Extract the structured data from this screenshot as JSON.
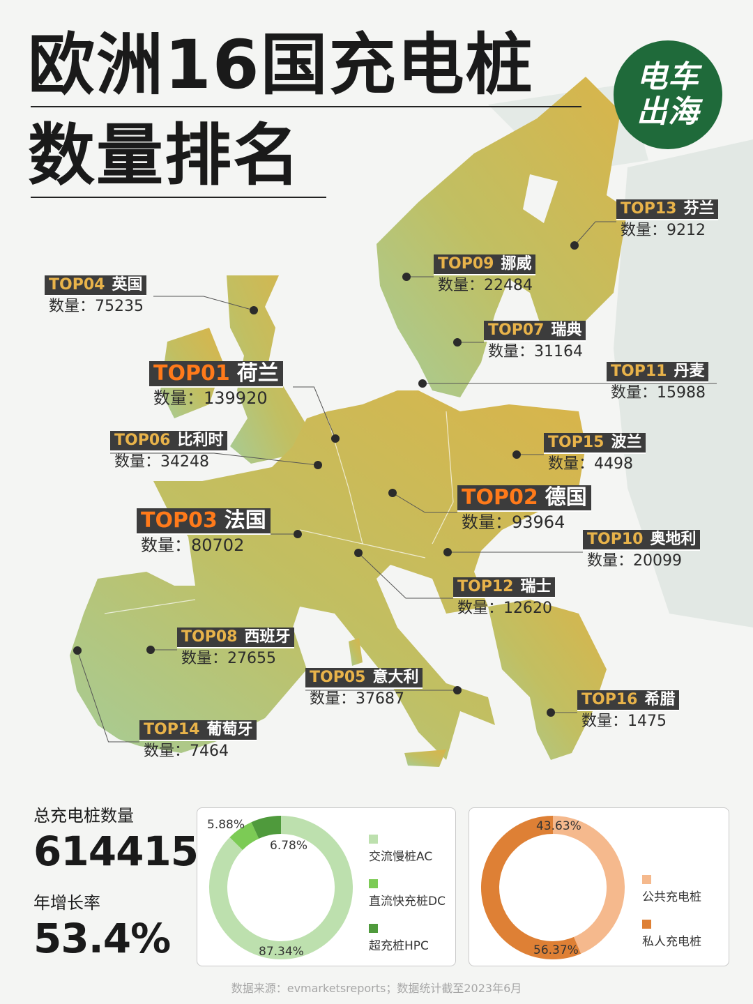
{
  "title": {
    "line1": "欧洲16国充电桩",
    "line2": "数量排名"
  },
  "logo": {
    "line1": "电车",
    "line2": "出海"
  },
  "count_prefix": "数量：",
  "countries": [
    {
      "rank": "TOP01",
      "name": "荷兰",
      "count": "139920",
      "value": 139920
    },
    {
      "rank": "TOP02",
      "name": "德国",
      "count": "93964",
      "value": 93964
    },
    {
      "rank": "TOP03",
      "name": "法国",
      "count": "80702",
      "value": 80702
    },
    {
      "rank": "TOP04",
      "name": "英国",
      "count": "75235",
      "value": 75235
    },
    {
      "rank": "TOP05",
      "name": "意大利",
      "count": "37687",
      "value": 37687
    },
    {
      "rank": "TOP06",
      "name": "比利时",
      "count": "34248",
      "value": 34248
    },
    {
      "rank": "TOP07",
      "name": "瑞典",
      "count": "31164",
      "value": 31164
    },
    {
      "rank": "TOP08",
      "name": "西班牙",
      "count": "27655",
      "value": 27655
    },
    {
      "rank": "TOP09",
      "name": "挪威",
      "count": "22484",
      "value": 22484
    },
    {
      "rank": "TOP10",
      "name": "奥地利",
      "count": "20099",
      "value": 20099
    },
    {
      "rank": "TOP11",
      "name": "丹麦",
      "count": "15988",
      "value": 15988
    },
    {
      "rank": "TOP12",
      "name": "瑞士",
      "count": "12620",
      "value": 12620
    },
    {
      "rank": "TOP13",
      "name": "芬兰",
      "count": "9212",
      "value": 9212
    },
    {
      "rank": "TOP14",
      "name": "葡萄牙",
      "count": "7464",
      "value": 7464
    },
    {
      "rank": "TOP15",
      "name": "波兰",
      "count": "4498",
      "value": 4498
    },
    {
      "rank": "TOP16",
      "name": "希腊",
      "count": "1475",
      "value": 1475
    }
  ],
  "stats": {
    "total_label": "总充电桩数量",
    "total_value": "614415",
    "growth_label": "年增长率",
    "growth_value": "53.4%"
  },
  "chart_data": [
    {
      "type": "pie",
      "categories": [
        "交流慢桩AC",
        "直流快充桩DC",
        "超充桩HPC"
      ],
      "values": [
        87.34,
        5.88,
        6.78
      ],
      "labels": [
        "87.34%",
        "5.88%",
        "6.78%"
      ],
      "colors": [
        "#bde0ae",
        "#7ccb55",
        "#4f9a3c"
      ],
      "legend": "right"
    },
    {
      "type": "pie",
      "categories": [
        "公共充电桩",
        "私人充电桩"
      ],
      "values": [
        43.63,
        56.37
      ],
      "labels": [
        "43.63%",
        "56.37%"
      ],
      "colors": [
        "#f5b98d",
        "#de8035"
      ],
      "legend": "right"
    }
  ],
  "footer": "数据来源：evmarketsreports；数据统计截至2023年6月",
  "colors": {
    "tag_bg": "#3c3c3c",
    "tag_rank": "#e8b34a",
    "tag_rank_top": "#ff7a1a",
    "logo_bg": "#1f6a3a",
    "map_green": "#9fc98f",
    "map_gold": "#d2b24a"
  }
}
